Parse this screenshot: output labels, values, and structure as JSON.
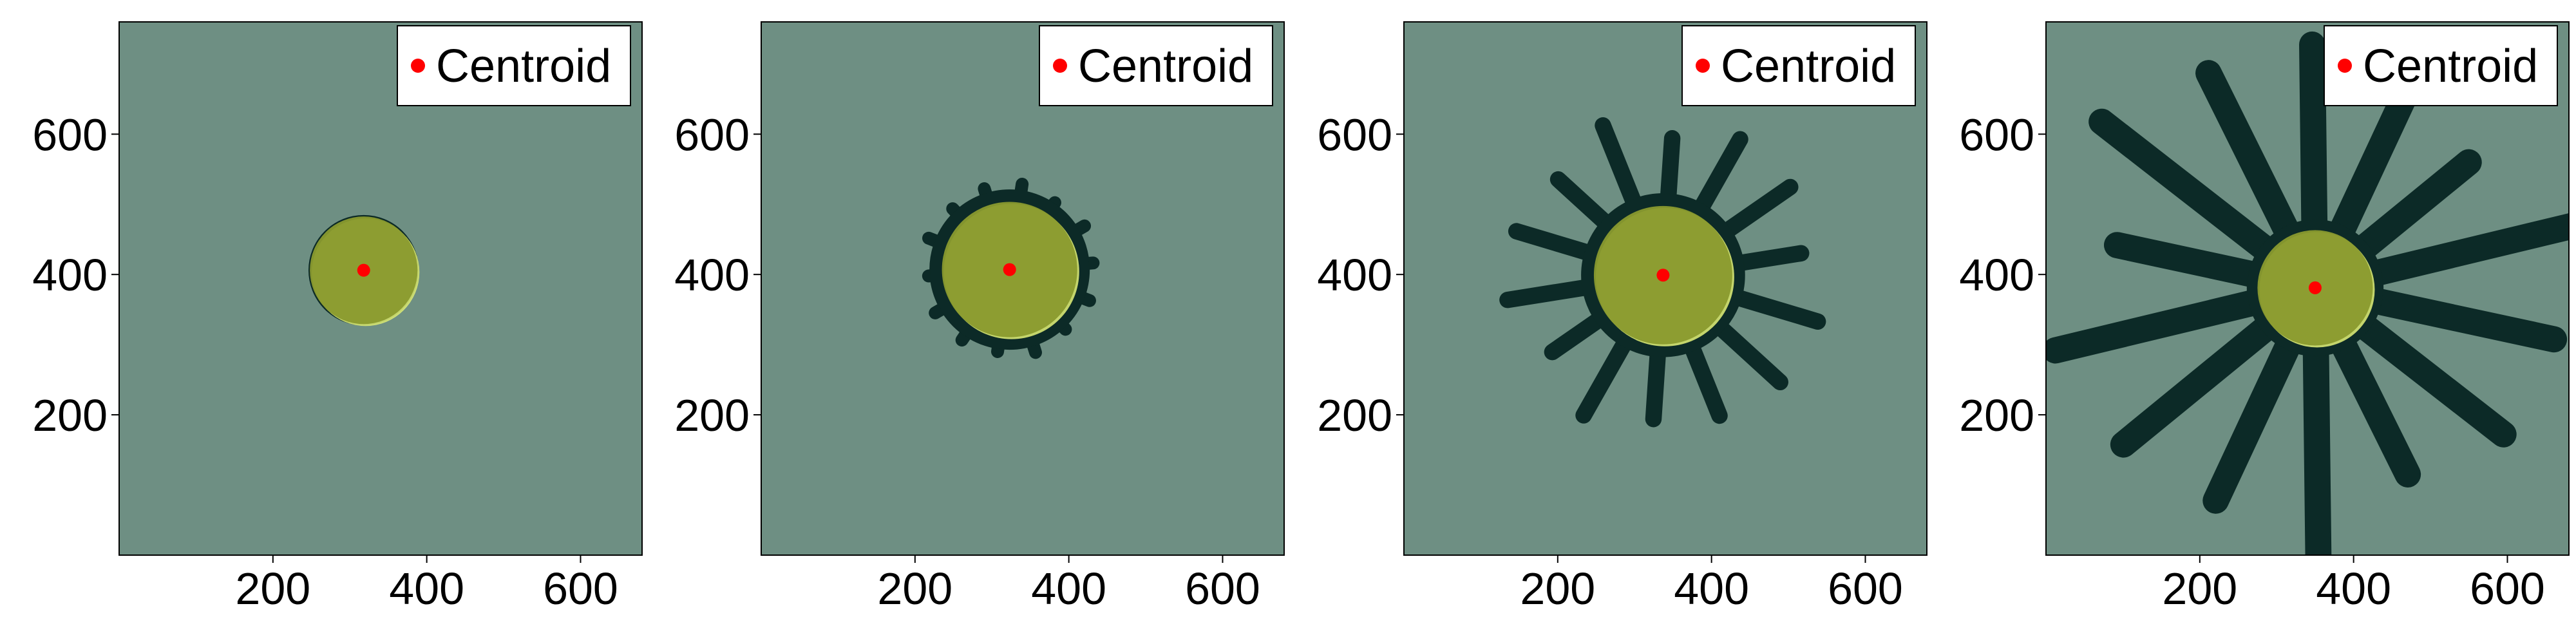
{
  "colors": {
    "background": "#6e8f83",
    "colony": "#0c2a27",
    "circle_fill": "#8a9a2e",
    "circle_highlight": "#d8e874",
    "centroid": "#ff0000",
    "axis": "#000000"
  },
  "chart_data": [
    {
      "type": "scatter",
      "title": "",
      "xlabel": "",
      "ylabel": "",
      "xlim": [
        0,
        680
      ],
      "ylim": [
        0,
        760
      ],
      "xticks": [
        200,
        400,
        600
      ],
      "yticks": [
        200,
        400,
        600
      ],
      "legend": {
        "entries": [
          "Centroid"
        ],
        "position": "top-right"
      },
      "grid": false,
      "series": [
        {
          "name": "Centroid",
          "x": [
            318
          ],
          "y": [
            406
          ]
        }
      ],
      "circle": {
        "cx": 318,
        "cy": 406,
        "r": 70
      },
      "arm_length": 0
    },
    {
      "type": "scatter",
      "title": "",
      "xlabel": "",
      "ylabel": "",
      "xlim": [
        0,
        680
      ],
      "ylim": [
        0,
        760
      ],
      "xticks": [
        200,
        400,
        600
      ],
      "yticks": [
        200,
        400,
        600
      ],
      "legend": {
        "entries": [
          "Centroid"
        ],
        "position": "top-right"
      },
      "grid": false,
      "series": [
        {
          "name": "Centroid",
          "x": [
            323
          ],
          "y": [
            407
          ]
        }
      ],
      "circle": {
        "cx": 323,
        "cy": 407,
        "r": 88
      },
      "arm_length": 25
    },
    {
      "type": "scatter",
      "title": "",
      "xlabel": "",
      "ylabel": "",
      "xlim": [
        0,
        680
      ],
      "ylim": [
        0,
        760
      ],
      "xticks": [
        200,
        400,
        600
      ],
      "yticks": [
        200,
        400,
        600
      ],
      "legend": {
        "entries": [
          "Centroid"
        ],
        "position": "top-right"
      },
      "grid": false,
      "series": [
        {
          "name": "Centroid",
          "x": [
            337
          ],
          "y": [
            399
          ]
        }
      ],
      "circle": {
        "cx": 337,
        "cy": 399,
        "r": 90
      },
      "arm_length": 120
    },
    {
      "type": "scatter",
      "title": "",
      "xlabel": "",
      "ylabel": "",
      "xlim": [
        0,
        680
      ],
      "ylim": [
        0,
        760
      ],
      "xticks": [
        200,
        400,
        600
      ],
      "yticks": [
        200,
        400,
        600
      ],
      "legend": {
        "entries": [
          "Centroid"
        ],
        "position": "top-right"
      },
      "grid": false,
      "series": [
        {
          "name": "Centroid",
          "x": [
            350
          ],
          "y": [
            381
          ]
        }
      ],
      "circle": {
        "cx": 350,
        "cy": 381,
        "r": 75
      },
      "arm_length": 280
    }
  ]
}
